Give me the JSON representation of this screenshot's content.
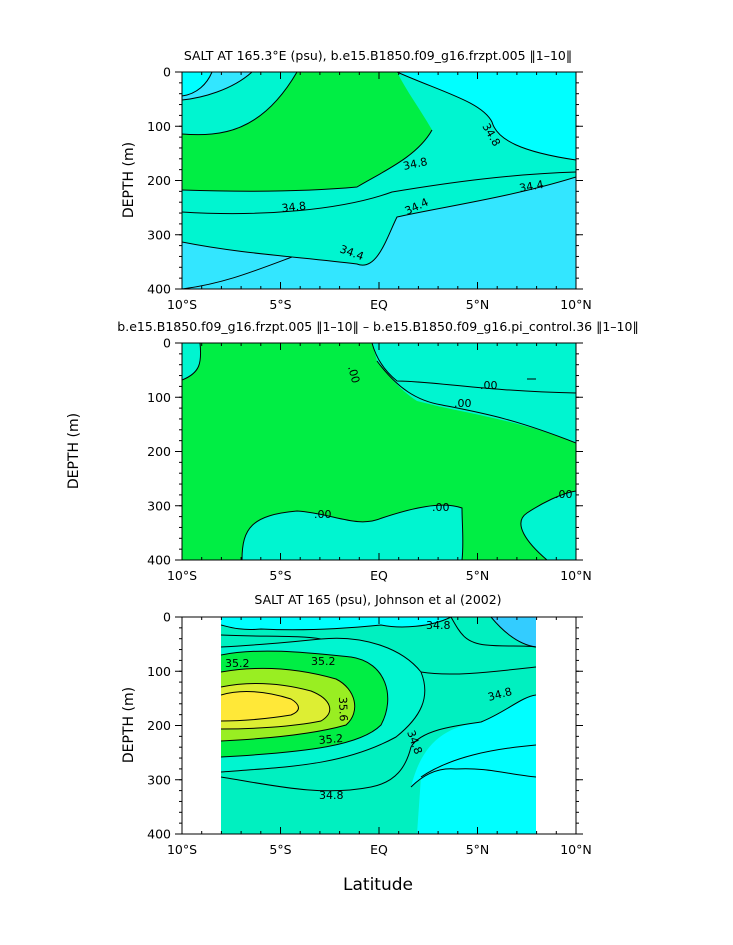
{
  "figure": {
    "xlabel": "Latitude",
    "colors": {
      "cyan": "#00ffff",
      "skyblue": "#33e6ff",
      "aquamarine": "#00f5d0",
      "teal": "#00f0c0",
      "green": "#00ee44",
      "yellowgreen": "#99ee22",
      "yellow": "#ffee33",
      "lightgreen": "#44ee55"
    }
  },
  "chart_data": [
    {
      "type": "contour",
      "title": "SALT AT 165.3°E (psu), b.e15.B1850.f09_g16.frzpt.005 ‖1–10‖",
      "ylabel": "DEPTH (m)",
      "xlim": [
        -10,
        10
      ],
      "ylim": [
        0,
        400
      ],
      "y_inverted": true,
      "x_ticks": [
        "10°S",
        "5°S",
        "EQ",
        "5°N",
        "10°N"
      ],
      "y_ticks": [
        "0",
        "100",
        "200",
        "300",
        "400"
      ],
      "contour_labels": [
        "34.8",
        "34.8",
        "34.8",
        "34.4",
        "34.4",
        "34.4"
      ]
    },
    {
      "type": "contour",
      "title": "b.e15.B1850.f09_g16.frzpt.005 ‖1–10‖ – b.e15.B1850.f09_g16.pi_control.36 ‖1–10‖",
      "ylabel": "DEPTH (m)",
      "xlim": [
        -10,
        10
      ],
      "ylim": [
        0,
        400
      ],
      "y_inverted": true,
      "x_ticks": [
        "10°S",
        "5°S",
        "EQ",
        "5°N",
        "10°N"
      ],
      "y_ticks": [
        "0",
        "100",
        "200",
        "300",
        "400"
      ],
      "contour_labels": [
        ".00",
        ".00",
        ".00",
        ".00",
        ".00",
        ".00"
      ]
    },
    {
      "type": "contour",
      "title": "SALT AT 165 (psu), Johnson et al (2002)",
      "ylabel": "DEPTH (m)",
      "xlim": [
        -10,
        10
      ],
      "ylim": [
        0,
        400
      ],
      "data_xlim": [
        -8,
        8
      ],
      "y_inverted": true,
      "x_ticks": [
        "10°S",
        "5°S",
        "EQ",
        "5°N",
        "10°N"
      ],
      "y_ticks": [
        "0",
        "100",
        "200",
        "300",
        "400"
      ],
      "contour_labels": [
        "35.2",
        "35.2",
        "35.6",
        "35.2",
        "34.8",
        "34.8",
        "34.8",
        "34.8"
      ]
    }
  ]
}
